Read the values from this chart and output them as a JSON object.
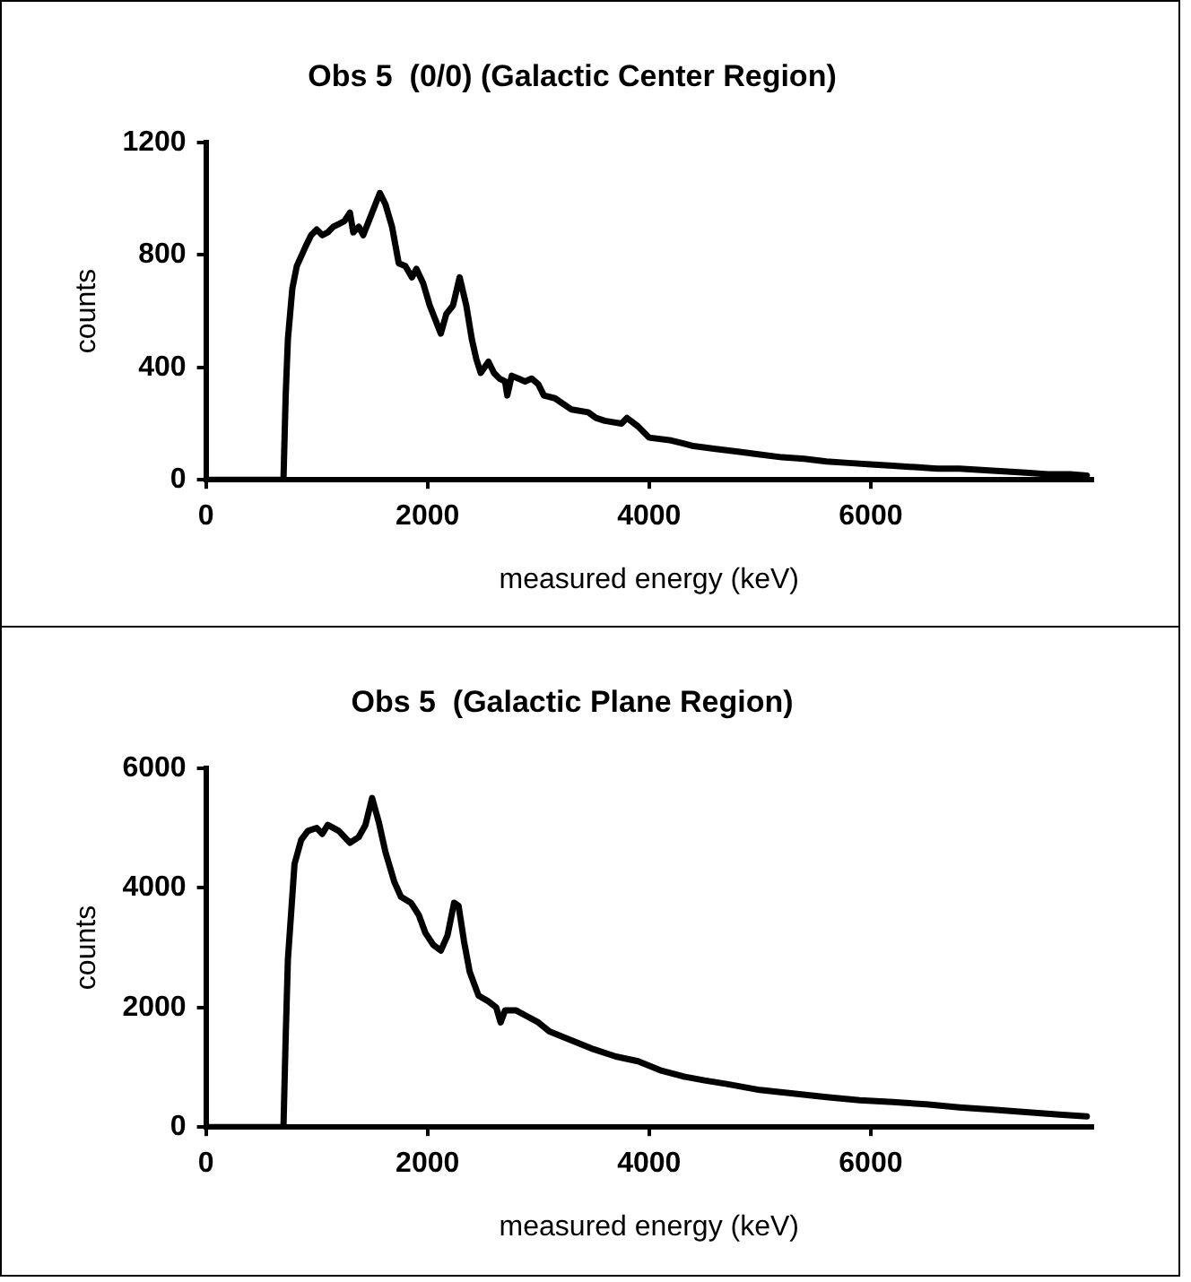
{
  "chart_data": [
    {
      "type": "line",
      "title": "Obs 5  (0/0) (Galactic Center Region)",
      "xlabel": "measured energy (keV)",
      "ylabel": "counts",
      "xlim": [
        0,
        8000
      ],
      "xticks": [
        0,
        2000,
        4000,
        6000
      ],
      "ylim": [
        0,
        1200
      ],
      "yticks": [
        0,
        400,
        800,
        1200
      ],
      "grid": false,
      "legend": false,
      "marker": "none",
      "series": [
        {
          "color": "#000000",
          "x": [
            0,
            700,
            720,
            740,
            780,
            820,
            900,
            950,
            1000,
            1050,
            1100,
            1150,
            1200,
            1250,
            1300,
            1330,
            1380,
            1420,
            1470,
            1530,
            1570,
            1620,
            1680,
            1740,
            1800,
            1860,
            1900,
            1960,
            2020,
            2080,
            2120,
            2170,
            2230,
            2290,
            2350,
            2400,
            2440,
            2480,
            2550,
            2600,
            2650,
            2700,
            2720,
            2760,
            2820,
            2880,
            2940,
            3000,
            3050,
            3150,
            3300,
            3450,
            3520,
            3600,
            3750,
            3800,
            3900,
            4000,
            4200,
            4400,
            4600,
            4800,
            5000,
            5200,
            5400,
            5600,
            5800,
            6000,
            6200,
            6400,
            6600,
            6800,
            7000,
            7200,
            7400,
            7600,
            7800,
            7950
          ],
          "values": [
            0,
            0,
            300,
            500,
            680,
            760,
            830,
            870,
            890,
            870,
            880,
            900,
            910,
            920,
            950,
            880,
            900,
            870,
            920,
            980,
            1020,
            980,
            900,
            770,
            760,
            720,
            750,
            700,
            620,
            560,
            520,
            590,
            620,
            720,
            620,
            500,
            430,
            380,
            420,
            380,
            360,
            350,
            300,
            370,
            360,
            350,
            360,
            340,
            300,
            290,
            250,
            240,
            220,
            210,
            200,
            220,
            190,
            150,
            140,
            120,
            110,
            100,
            90,
            80,
            75,
            65,
            60,
            55,
            50,
            45,
            40,
            40,
            35,
            30,
            25,
            20,
            20,
            15
          ]
        }
      ]
    },
    {
      "type": "line",
      "title": "Obs 5  (Galactic Plane Region)",
      "xlabel": "measured energy (keV)",
      "ylabel": "counts",
      "xlim": [
        0,
        8000
      ],
      "xticks": [
        0,
        2000,
        4000,
        6000
      ],
      "ylim": [
        0,
        6000
      ],
      "yticks": [
        0,
        2000,
        4000,
        6000
      ],
      "grid": false,
      "legend": false,
      "marker": "none",
      "series": [
        {
          "color": "#000000",
          "x": [
            0,
            700,
            720,
            740,
            770,
            800,
            860,
            920,
            1000,
            1050,
            1100,
            1200,
            1300,
            1380,
            1440,
            1500,
            1560,
            1620,
            1700,
            1760,
            1850,
            1920,
            1980,
            2050,
            2120,
            2180,
            2240,
            2280,
            2330,
            2380,
            2460,
            2550,
            2620,
            2660,
            2700,
            2800,
            2900,
            3000,
            3100,
            3300,
            3500,
            3700,
            3900,
            4100,
            4300,
            4500,
            4700,
            5000,
            5300,
            5600,
            5900,
            6200,
            6500,
            6800,
            7100,
            7400,
            7700,
            7950
          ],
          "values": [
            0,
            0,
            1500,
            2800,
            3600,
            4400,
            4800,
            4950,
            5000,
            4900,
            5050,
            4950,
            4750,
            4850,
            5050,
            5500,
            5100,
            4600,
            4100,
            3850,
            3750,
            3550,
            3250,
            3050,
            2950,
            3200,
            3750,
            3700,
            3100,
            2600,
            2200,
            2100,
            2000,
            1750,
            1950,
            1950,
            1850,
            1750,
            1600,
            1450,
            1300,
            1180,
            1100,
            950,
            850,
            780,
            720,
            620,
            560,
            500,
            450,
            420,
            380,
            330,
            290,
            250,
            210,
            180
          ]
        }
      ]
    }
  ]
}
